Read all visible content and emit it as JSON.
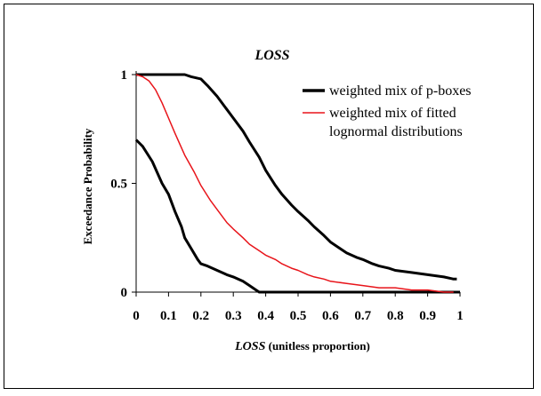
{
  "chart_data": {
    "type": "line",
    "title": "LOSS",
    "xlabel_italic": "LOSS",
    "xlabel_rest": " (unitless proportion)",
    "ylabel": "Exceedance Probability",
    "xlim": [
      0,
      1
    ],
    "ylim": [
      0,
      1
    ],
    "x_ticks": [
      "0",
      "0.1",
      "0.2",
      "0.3",
      "0.4",
      "0.5",
      "0.6",
      "0.7",
      "0.8",
      "0.9",
      "1"
    ],
    "y_ticks": [
      "0",
      "0.5",
      "1"
    ],
    "grid": false,
    "legend_position": "top-right",
    "legend": [
      {
        "label": "weighted mix of p-boxes",
        "color": "#000000"
      },
      {
        "label": "weighted mix of fitted",
        "color": "#e8141a"
      },
      {
        "label": "lognormal distributions",
        "color": null
      }
    ],
    "series": [
      {
        "key": "pbox_upper",
        "color": "#000000",
        "points": [
          [
            0,
            1
          ],
          [
            0.05,
            1
          ],
          [
            0.1,
            1
          ],
          [
            0.15,
            1
          ],
          [
            0.17,
            0.99
          ],
          [
            0.2,
            0.98
          ],
          [
            0.22,
            0.95
          ],
          [
            0.25,
            0.9
          ],
          [
            0.28,
            0.84
          ],
          [
            0.3,
            0.8
          ],
          [
            0.33,
            0.74
          ],
          [
            0.35,
            0.69
          ],
          [
            0.38,
            0.62
          ],
          [
            0.4,
            0.56
          ],
          [
            0.43,
            0.49
          ],
          [
            0.45,
            0.45
          ],
          [
            0.48,
            0.4
          ],
          [
            0.5,
            0.37
          ],
          [
            0.53,
            0.33
          ],
          [
            0.55,
            0.3
          ],
          [
            0.58,
            0.26
          ],
          [
            0.6,
            0.23
          ],
          [
            0.63,
            0.2
          ],
          [
            0.65,
            0.18
          ],
          [
            0.68,
            0.16
          ],
          [
            0.7,
            0.15
          ],
          [
            0.73,
            0.13
          ],
          [
            0.75,
            0.12
          ],
          [
            0.78,
            0.11
          ],
          [
            0.8,
            0.1
          ],
          [
            0.85,
            0.09
          ],
          [
            0.9,
            0.08
          ],
          [
            0.95,
            0.07
          ],
          [
            0.98,
            0.06
          ],
          [
            0.99,
            0.06
          ]
        ]
      },
      {
        "key": "pbox_lower",
        "color": "#000000",
        "points": [
          [
            0,
            0.7
          ],
          [
            0.02,
            0.67
          ],
          [
            0.05,
            0.6
          ],
          [
            0.08,
            0.5
          ],
          [
            0.1,
            0.45
          ],
          [
            0.12,
            0.37
          ],
          [
            0.14,
            0.3
          ],
          [
            0.15,
            0.25
          ],
          [
            0.17,
            0.2
          ],
          [
            0.19,
            0.15
          ],
          [
            0.2,
            0.13
          ],
          [
            0.22,
            0.12
          ],
          [
            0.25,
            0.1
          ],
          [
            0.28,
            0.08
          ],
          [
            0.3,
            0.07
          ],
          [
            0.33,
            0.05
          ],
          [
            0.35,
            0.03
          ],
          [
            0.37,
            0.01
          ],
          [
            0.38,
            0
          ],
          [
            0.5,
            0
          ],
          [
            0.7,
            0
          ],
          [
            1,
            0
          ]
        ]
      },
      {
        "key": "lognormal_mix",
        "color": "#e8141a",
        "points": [
          [
            0,
            1
          ],
          [
            0.02,
            0.99
          ],
          [
            0.04,
            0.97
          ],
          [
            0.06,
            0.93
          ],
          [
            0.08,
            0.87
          ],
          [
            0.1,
            0.8
          ],
          [
            0.12,
            0.73
          ],
          [
            0.15,
            0.63
          ],
          [
            0.18,
            0.55
          ],
          [
            0.2,
            0.49
          ],
          [
            0.23,
            0.42
          ],
          [
            0.25,
            0.38
          ],
          [
            0.28,
            0.32
          ],
          [
            0.3,
            0.29
          ],
          [
            0.33,
            0.25
          ],
          [
            0.35,
            0.22
          ],
          [
            0.38,
            0.19
          ],
          [
            0.4,
            0.17
          ],
          [
            0.43,
            0.15
          ],
          [
            0.45,
            0.13
          ],
          [
            0.48,
            0.11
          ],
          [
            0.5,
            0.1
          ],
          [
            0.53,
            0.08
          ],
          [
            0.55,
            0.07
          ],
          [
            0.58,
            0.06
          ],
          [
            0.6,
            0.05
          ],
          [
            0.65,
            0.04
          ],
          [
            0.7,
            0.03
          ],
          [
            0.75,
            0.02
          ],
          [
            0.8,
            0.02
          ],
          [
            0.85,
            0.01
          ],
          [
            0.9,
            0.01
          ],
          [
            0.95,
            0
          ],
          [
            0.98,
            0
          ]
        ]
      }
    ]
  }
}
